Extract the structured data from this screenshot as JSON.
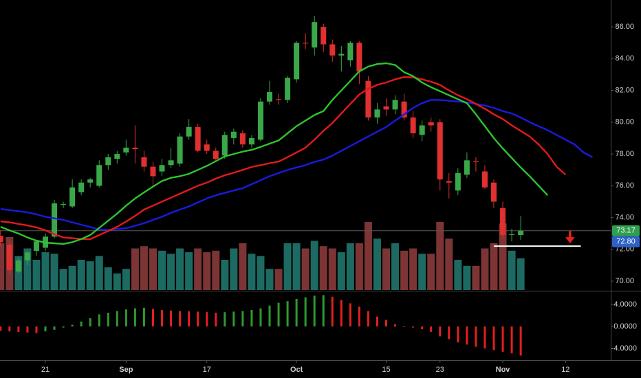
{
  "chart_data": [
    {
      "type": "candlestick",
      "categories": [
        null,
        null,
        null,
        null,
        null,
        "21",
        null,
        null,
        null,
        null,
        null,
        null,
        null,
        null,
        "Sep",
        null,
        null,
        null,
        null,
        null,
        null,
        null,
        null,
        "17",
        null,
        null,
        null,
        null,
        null,
        null,
        null,
        null,
        null,
        "Oct",
        null,
        null,
        null,
        null,
        null,
        null,
        null,
        null,
        null,
        "15",
        null,
        null,
        null,
        null,
        null,
        "23",
        null,
        null,
        null,
        null,
        null,
        null,
        "Nov",
        null,
        null,
        null,
        null,
        null,
        null,
        "12",
        null,
        null,
        null
      ],
      "open": [
        72.85,
        72.3,
        70.6,
        71.3,
        71.9,
        72.1,
        72.8,
        74.8,
        74.7,
        75.6,
        76.2,
        76.0,
        77.3,
        77.7,
        78.1,
        78.4,
        77.8,
        77.2,
        76.9,
        77.3,
        77.4,
        79.1,
        79.7,
        78.6,
        78.2,
        77.9,
        79.0,
        79.3,
        78.6,
        78.9,
        81.3,
        81.45,
        81.4,
        82.7,
        85.0,
        84.7,
        86.0,
        84.9,
        84.2,
        83.9,
        85.0,
        82.6,
        80.3,
        81.0,
        80.8,
        81.3,
        80.3,
        79.2,
        80.0,
        80.0,
        76.3,
        75.7,
        76.7,
        77.55,
        76.9,
        76.2,
        74.6,
        72.9,
        72.9,
        null,
        null,
        null,
        null,
        null,
        null,
        null,
        null
      ],
      "high": [
        73.2,
        72.5,
        71.5,
        71.9,
        72.6,
        73.0,
        75.1,
        75.0,
        76.4,
        76.4,
        76.5,
        77.6,
        78.0,
        78.2,
        78.9,
        79.8,
        78.2,
        77.5,
        77.7,
        78.4,
        79.3,
        80.2,
        79.9,
        78.9,
        78.4,
        79.4,
        79.6,
        79.5,
        79.2,
        81.5,
        82.6,
        81.8,
        82.9,
        85.1,
        85.6,
        86.7,
        86.2,
        85.2,
        84.8,
        85.1,
        85.1,
        82.9,
        81.2,
        81.5,
        81.7,
        81.8,
        80.7,
        80.1,
        80.3,
        80.2,
        76.8,
        77.1,
        78.1,
        77.8,
        77.3,
        76.4,
        75.0,
        73.3,
        74.1,
        null,
        null,
        null,
        null,
        null,
        null,
        null,
        null
      ],
      "low": [
        72.2,
        70.4,
        70.5,
        71.0,
        71.6,
        71.9,
        72.7,
        74.6,
        74.6,
        75.4,
        75.9,
        75.9,
        77.0,
        77.4,
        77.9,
        77.4,
        76.9,
        75.9,
        76.6,
        77.1,
        77.2,
        78.9,
        78.1,
        78.0,
        77.5,
        77.7,
        78.6,
        78.4,
        78.4,
        78.8,
        81.1,
        81.1,
        81.2,
        82.5,
        84.6,
        84.2,
        84.4,
        83.8,
        83.2,
        83.5,
        82.4,
        80.1,
        79.9,
        80.4,
        80.5,
        80.1,
        79.0,
        78.8,
        79.4,
        75.7,
        75.2,
        75.4,
        76.5,
        76.9,
        75.8,
        74.6,
        72.7,
        72.5,
        72.6,
        null,
        null,
        null,
        null,
        null,
        null,
        null,
        null
      ],
      "close": [
        72.45,
        70.7,
        71.3,
        71.8,
        72.5,
        72.8,
        74.9,
        74.85,
        75.9,
        76.2,
        76.4,
        77.3,
        77.8,
        78.0,
        78.4,
        78.3,
        77.2,
        76.6,
        77.3,
        77.6,
        79.1,
        79.7,
        78.2,
        78.2,
        77.7,
        79.2,
        79.4,
        78.6,
        79.0,
        81.3,
        81.9,
        81.4,
        82.8,
        85.0,
        84.95,
        86.3,
        84.9,
        84.2,
        84.3,
        85.0,
        83.2,
        80.3,
        80.8,
        80.8,
        81.4,
        80.3,
        79.3,
        79.8,
        79.8,
        76.4,
        76.2,
        76.8,
        77.6,
        77.5,
        75.9,
        75.0,
        72.9,
        72.95,
        73.17,
        null,
        null,
        null,
        null,
        null,
        null,
        null,
        null
      ],
      "up_color": "#3aa84a",
      "down_color": "#e0302f",
      "series": [
        {
          "color": "#1a1ae0",
          "values": [
            74.54,
            74.47,
            74.4,
            74.33,
            74.2,
            74.05,
            73.95,
            73.85,
            73.7,
            73.55,
            73.4,
            73.25,
            73.22,
            73.28,
            73.33,
            73.48,
            73.65,
            73.85,
            74.05,
            74.3,
            74.5,
            74.7,
            74.95,
            75.2,
            75.4,
            75.55,
            75.7,
            75.85,
            76.1,
            76.35,
            76.6,
            76.8,
            77.0,
            77.15,
            77.3,
            77.5,
            77.65,
            77.9,
            78.2,
            78.5,
            78.8,
            79.1,
            79.4,
            79.7,
            80.1,
            80.5,
            80.9,
            81.2,
            81.4,
            81.4,
            81.35,
            81.3,
            81.25,
            81.15,
            81.05,
            80.9,
            80.7,
            80.55,
            80.3,
            80.0,
            79.75,
            79.5,
            79.2,
            78.9,
            78.6,
            78.1,
            77.8
          ]
        },
        {
          "color": "#e31a1a",
          "values": [
            73.76,
            73.7,
            73.6,
            73.5,
            73.38,
            73.2,
            72.95,
            72.75,
            72.7,
            72.65,
            72.64,
            72.9,
            73.15,
            73.42,
            73.75,
            74.1,
            74.5,
            74.75,
            75.0,
            75.25,
            75.5,
            75.75,
            76.0,
            76.2,
            76.45,
            76.66,
            76.82,
            77.0,
            77.18,
            77.3,
            77.42,
            77.52,
            77.8,
            78.1,
            78.4,
            78.9,
            79.45,
            79.95,
            80.55,
            81.15,
            81.75,
            82.1,
            82.35,
            82.5,
            82.7,
            82.84,
            82.82,
            82.7,
            82.55,
            82.35,
            82.0,
            81.7,
            81.45,
            81.15,
            80.85,
            80.5,
            80.2,
            79.8,
            79.45,
            79.1,
            78.6,
            78.0,
            77.2,
            76.7,
            null,
            null,
            null
          ]
        },
        {
          "color": "#2ec52e",
          "values": [
            73.42,
            73.2,
            73.0,
            72.75,
            72.55,
            72.42,
            72.38,
            72.34,
            72.45,
            72.65,
            72.9,
            73.35,
            73.8,
            74.25,
            74.75,
            75.2,
            75.58,
            75.95,
            76.3,
            76.5,
            76.6,
            76.75,
            77.0,
            77.25,
            77.55,
            77.85,
            78.0,
            78.15,
            78.26,
            78.45,
            78.65,
            78.85,
            79.3,
            79.75,
            80.1,
            80.45,
            80.7,
            81.4,
            82.0,
            82.6,
            83.2,
            83.5,
            83.66,
            83.71,
            83.6,
            83.15,
            82.9,
            82.5,
            82.2,
            81.95,
            81.7,
            81.45,
            81.2,
            80.5,
            79.75,
            79.0,
            78.35,
            77.75,
            77.15,
            76.6,
            76.0,
            75.4,
            null,
            null,
            null,
            null,
            null
          ]
        }
      ],
      "volume": {
        "values": [
          62,
          70,
          45,
          55,
          40,
          50,
          48,
          28,
          32,
          40,
          38,
          45,
          30,
          22,
          28,
          55,
          58,
          55,
          52,
          48,
          55,
          50,
          55,
          50,
          52,
          40,
          55,
          62,
          48,
          45,
          28,
          28,
          62,
          62,
          55,
          65,
          58,
          55,
          50,
          62,
          62,
          90,
          68,
          55,
          62,
          52,
          55,
          48,
          48,
          90,
          68,
          40,
          32,
          32,
          55,
          62,
          88,
          52,
          42,
          null,
          null,
          null,
          null,
          null,
          null,
          null,
          null
        ],
        "ylim": [
          0,
          100
        ],
        "up_color": "#1d6a62",
        "down_color": "#7c3434"
      },
      "ylim": [
        69.44,
        87.69
      ],
      "yticks": [
        {
          "value": 70,
          "label": "70.00"
        },
        {
          "value": 72,
          "label": "72.00"
        },
        {
          "value": 74,
          "label": "74.00"
        },
        {
          "value": 76,
          "label": "76.00"
        },
        {
          "value": 78,
          "label": "78.00"
        },
        {
          "value": 80,
          "label": "80.00"
        },
        {
          "value": 82,
          "label": "82.00"
        },
        {
          "value": 84,
          "label": "84.00"
        },
        {
          "value": 86,
          "label": "86.00"
        }
      ],
      "price_labels": [
        {
          "value": 73.17,
          "label": "73.17",
          "color": "#2f9e4f"
        },
        {
          "value": 72.8,
          "label": "72.80",
          "color": "#2f62c8"
        }
      ],
      "level_line": {
        "value": 72.2,
        "color": "#ffffff"
      }
    },
    {
      "type": "bar",
      "values": [
        -0.8,
        -0.9,
        -1.0,
        -1.1,
        -1.2,
        -0.9,
        -0.6,
        -0.2,
        0.3,
        0.9,
        1.5,
        2.2,
        2.5,
        2.8,
        3.1,
        3.3,
        3.4,
        3.2,
        3.0,
        2.9,
        2.8,
        2.75,
        2.7,
        2.6,
        2.5,
        2.6,
        2.7,
        2.8,
        3.0,
        3.3,
        3.8,
        4.3,
        4.6,
        5.0,
        5.3,
        5.6,
        5.7,
        5.4,
        4.8,
        4.2,
        3.6,
        2.8,
        1.8,
        1.2,
        0.4,
        0.0,
        -0.2,
        -0.5,
        -1.0,
        -1.8,
        -2.3,
        -2.9,
        -3.3,
        -3.7,
        -4.0,
        -4.3,
        -4.6,
        -4.9,
        -5.3,
        null,
        null,
        null,
        null,
        null,
        null,
        null,
        null
      ],
      "up_color": "#2e9a2e",
      "down_color": "#e3201e",
      "ylim": [
        -6.0,
        6.375
      ],
      "yticks": [
        {
          "value": 4,
          "label": "4.0000"
        },
        {
          "value": 0,
          "label": "0.0000"
        },
        {
          "value": -4,
          "label": "-4.0000"
        }
      ]
    }
  ]
}
